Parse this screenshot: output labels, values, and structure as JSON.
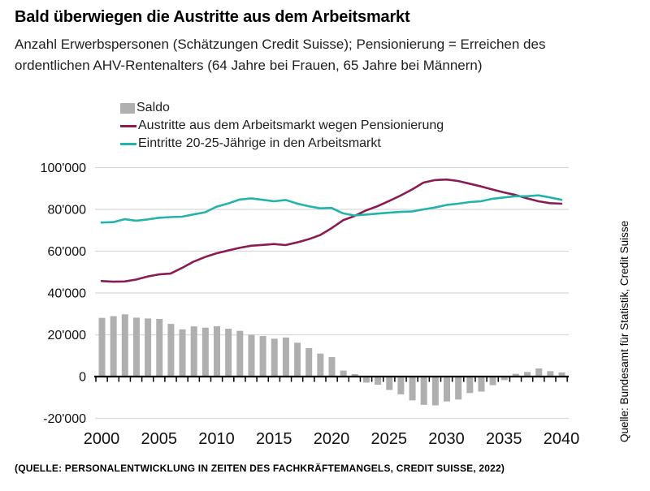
{
  "page": {
    "title": "Bald überwiegen die Austritte aus dem Arbeitsmarkt",
    "subtitle_line1": "Anzahl Erwerbspersonen (Schätzungen Credit Suisse); Pensionierung = Erreichen des",
    "subtitle_line2": "ordentlichen AHV-Rentenalters (64 Jahre bei Frauen, 65 Jahre bei Männern)",
    "footer_source": "(QUELLE: PERSONALENTWICKLUNG IN ZEITEN DES FACHKRÄFTEMANGELS, CREDIT SUISSE, 2022)",
    "side_source": "Quelle: Bundesamt für Statistik, Credit Suisse"
  },
  "colors": {
    "gridline": "#D8D8D8",
    "axis": "#000000",
    "axis_label": "#111111"
  },
  "chart_data": {
    "type": "combo",
    "title": "Bald überwiegen die Austritte aus dem Arbeitsmarkt",
    "xlabel": "",
    "ylabel": "Anzahl Erwerbspersonen",
    "x": [
      2000,
      2001,
      2002,
      2003,
      2004,
      2005,
      2006,
      2007,
      2008,
      2009,
      2010,
      2011,
      2012,
      2013,
      2014,
      2015,
      2016,
      2017,
      2018,
      2019,
      2020,
      2021,
      2022,
      2023,
      2024,
      2025,
      2026,
      2027,
      2028,
      2029,
      2030,
      2031,
      2032,
      2033,
      2034,
      2035,
      2036,
      2037,
      2038,
      2039,
      2040
    ],
    "series": [
      {
        "name": "Saldo",
        "type": "bar",
        "color": "#AFAFAF",
        "values": [
          28100,
          28900,
          29800,
          28200,
          27800,
          27600,
          25200,
          22600,
          24000,
          23400,
          24100,
          22900,
          21900,
          20000,
          19400,
          18100,
          18700,
          16200,
          13600,
          11000,
          9300,
          2900,
          1200,
          -2900,
          -3900,
          -6400,
          -8500,
          -11400,
          -13500,
          -13800,
          -11900,
          -11000,
          -7900,
          -7200,
          -4100,
          -1700,
          1300,
          2200,
          3900,
          2600,
          2000
        ]
      },
      {
        "name": "Austritte aus dem Arbeitsmarkt wegen Pensionierung",
        "type": "line",
        "color": "#8A1C53",
        "values": [
          45700,
          45400,
          45500,
          46400,
          47900,
          48900,
          49300,
          52000,
          55000,
          57200,
          59000,
          60300,
          61600,
          62600,
          63000,
          63400,
          62900,
          64200,
          65700,
          67700,
          71000,
          74800,
          76800,
          79500,
          81500,
          84000,
          86600,
          89500,
          92800,
          94000,
          94300,
          93600,
          92300,
          91000,
          89500,
          88100,
          86900,
          85300,
          83900,
          83000,
          82700
        ]
      },
      {
        "name": "Eintritte 20-25-Jährige in den Arbeitsmarkt",
        "type": "line",
        "color": "#24B3AB",
        "values": [
          73700,
          73900,
          75300,
          74600,
          75200,
          76000,
          76300,
          76500,
          77600,
          78600,
          81300,
          82800,
          84700,
          85300,
          84600,
          83900,
          84500,
          82800,
          81500,
          80500,
          80700,
          78100,
          77100,
          77500,
          78000,
          78400,
          78800,
          79000,
          80000,
          80900,
          82100,
          82700,
          83500,
          83900,
          85100,
          85700,
          86300,
          86300,
          86700,
          85700,
          84600
        ]
      }
    ],
    "ylim": [
      -20000,
      100000
    ],
    "ytick_interval": 20000,
    "ytick_labels": [
      "100'000",
      "80'000",
      "60'000",
      "40'000",
      "20'000",
      "0",
      "-20'000"
    ],
    "xticks": [
      2000,
      2005,
      2010,
      2015,
      2020,
      2025,
      2030,
      2035,
      2040
    ],
    "grid": true,
    "legend_position": "top-left",
    "number_format": "swiss-apostrophe"
  }
}
